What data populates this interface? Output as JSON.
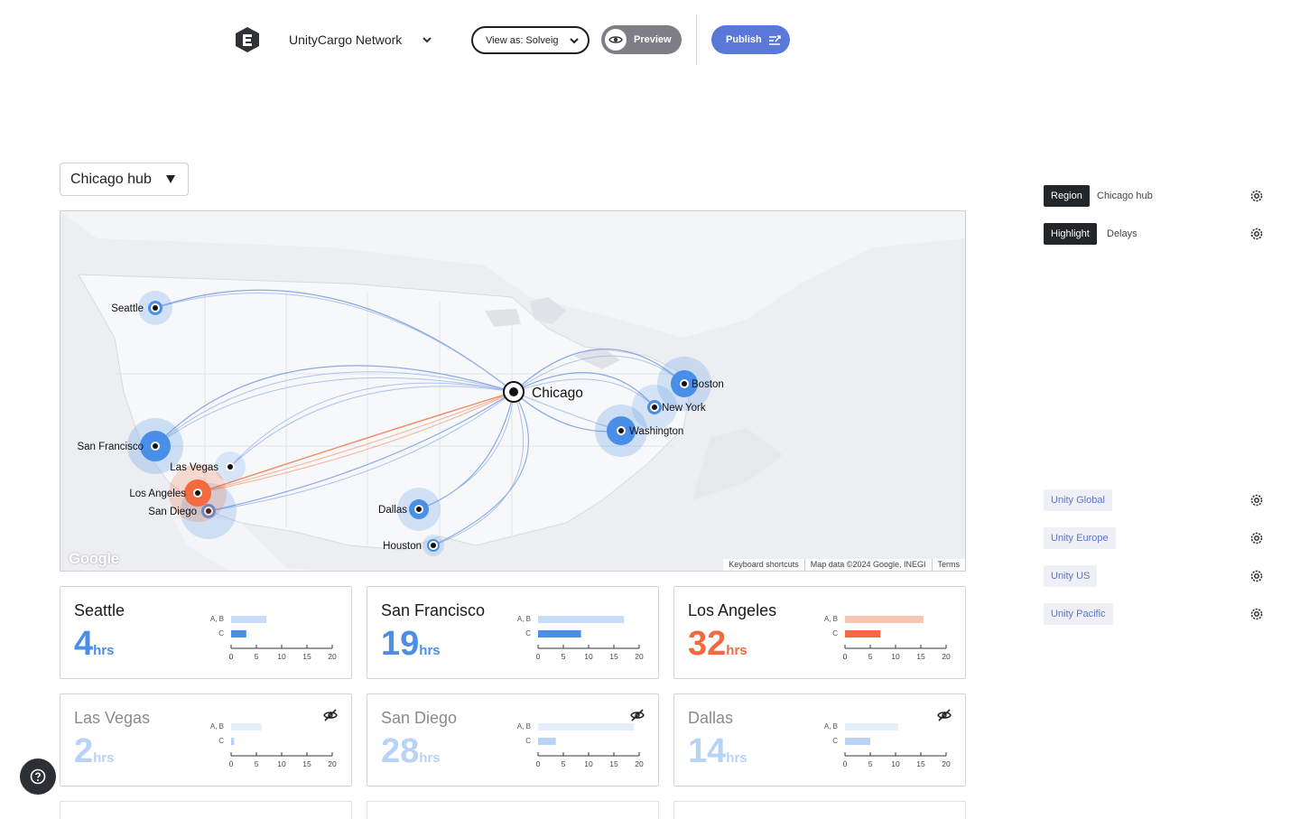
{
  "header": {
    "app_name": "UnityCargo Network",
    "view_as_label": "View as: Solveig",
    "preview_label": "Preview",
    "publish_label": "Publish",
    "accent_color": "#5a78d8"
  },
  "region_select": {
    "value": "Chicago hub"
  },
  "map": {
    "hub": "Chicago",
    "cities": [
      "Seattle",
      "San Francisco",
      "Las Vegas",
      "Los Angeles",
      "San Diego",
      "Dallas",
      "Houston",
      "Boston",
      "New York",
      "Washington"
    ],
    "footer": [
      "Keyboard shortcuts",
      "Map data ©2024 Google, INEGI",
      "Terms"
    ],
    "brand": "Google"
  },
  "cards": [
    {
      "city": "Seattle",
      "value": "4",
      "unit": "hrs",
      "status": "normal",
      "ab": 7,
      "c": 3,
      "axis": [
        "0",
        "5",
        "10",
        "15",
        "20"
      ],
      "ab_label": "A, B",
      "c_label": "C"
    },
    {
      "city": "San Francisco",
      "value": "19",
      "unit": "hrs",
      "status": "normal",
      "ab": 17,
      "c": 8.5,
      "axis": [
        "0",
        "5",
        "10",
        "15",
        "20"
      ],
      "ab_label": "A, B",
      "c_label": "C"
    },
    {
      "city": "Los Angeles",
      "value": "32",
      "unit": "hrs",
      "status": "delay",
      "ab": 15.5,
      "c": 7,
      "axis": [
        "0",
        "5",
        "10",
        "15",
        "20"
      ],
      "ab_label": "A, B",
      "c_label": "C"
    },
    {
      "city": "Las Vegas",
      "value": "2",
      "unit": "hrs",
      "status": "hidden",
      "ab": 6,
      "c": 0.6,
      "axis": [
        "0",
        "5",
        "10",
        "15",
        "20"
      ],
      "ab_label": "A, B",
      "c_label": "C"
    },
    {
      "city": "San Diego",
      "value": "28",
      "unit": "hrs",
      "status": "hidden",
      "ab": 19,
      "c": 3.5,
      "axis": [
        "0",
        "5",
        "10",
        "15",
        "20"
      ],
      "ab_label": "A, B",
      "c_label": "C"
    },
    {
      "city": "Dallas",
      "value": "14",
      "unit": "hrs",
      "status": "hidden",
      "ab": 10.5,
      "c": 5,
      "axis": [
        "0",
        "5",
        "10",
        "15",
        "20"
      ],
      "ab_label": "A, B",
      "c_label": "C"
    }
  ],
  "rail": {
    "filters": [
      {
        "chip": "Region",
        "value": "Chicago hub"
      },
      {
        "chip": "Highlight",
        "value": "Delays"
      }
    ],
    "groups": [
      "Unity Global",
      "Unity Europe",
      "Unity US",
      "Unity Pacific"
    ]
  },
  "colors": {
    "normal": "#4a8fe7",
    "delay": "#f26a3d",
    "dim": "#b8d3f6"
  }
}
